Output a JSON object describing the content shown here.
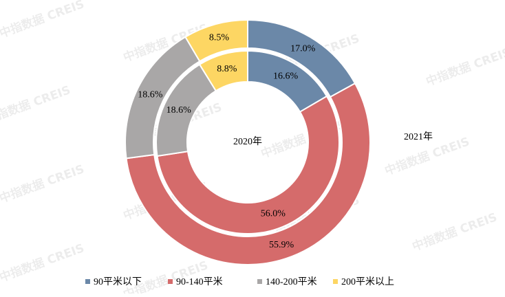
{
  "chart_data": {
    "type": "donut",
    "categories": [
      "90平米以下",
      "90-140平米",
      "140-200平米",
      "200平米以上"
    ],
    "colors": [
      "#6b88a8",
      "#d56b6b",
      "#a9a7a7",
      "#fdd663"
    ],
    "series": [
      {
        "name": "2020年",
        "values": [
          16.6,
          56.0,
          18.6,
          8.8
        ],
        "value_labels": [
          "16.6%",
          "56.0%",
          "18.6%",
          "8.8%"
        ]
      },
      {
        "name": "2021年",
        "values": [
          17.0,
          55.9,
          18.6,
          8.5
        ],
        "value_labels": [
          "17.0%",
          "55.9%",
          "18.6%",
          "8.5%"
        ]
      }
    ],
    "legend": "bottom",
    "watermark": "中指数据 CREIS"
  }
}
